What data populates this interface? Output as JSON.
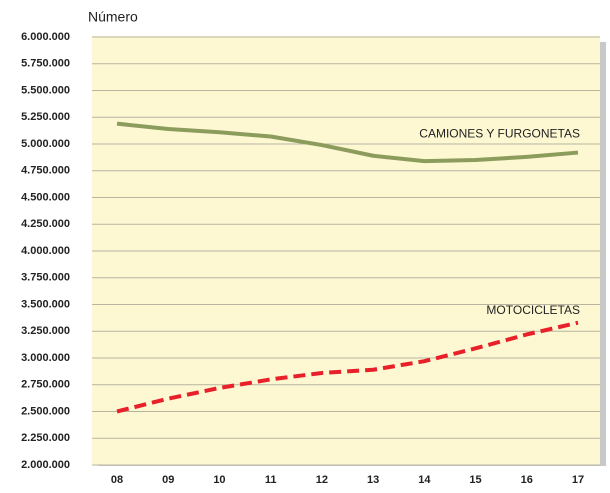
{
  "chart_data": {
    "type": "line",
    "y_label": "Número",
    "categories": [
      "08",
      "09",
      "10",
      "11",
      "12",
      "13",
      "14",
      "15",
      "16",
      "17"
    ],
    "series": [
      {
        "name": "CAMIONES Y FURGONETAS",
        "color": "#8c9c5c",
        "dashed": false,
        "values": [
          5190000,
          5140000,
          5110000,
          5070000,
          4990000,
          4890000,
          4840000,
          4850000,
          4880000,
          4920000
        ]
      },
      {
        "name": "MOTOCICLETAS",
        "color": "#e8202a",
        "dashed": true,
        "values": [
          2500000,
          2620000,
          2720000,
          2800000,
          2860000,
          2890000,
          2970000,
          3090000,
          3220000,
          3330000
        ]
      }
    ],
    "ylim": [
      2000000,
      6000000
    ],
    "yticks": [
      {
        "value": 2000000,
        "label": "2.000.000"
      },
      {
        "value": 2250000,
        "label": "2.250.000"
      },
      {
        "value": 2500000,
        "label": "2.500.000"
      },
      {
        "value": 2750000,
        "label": "2.750.000"
      },
      {
        "value": 3000000,
        "label": "3.000.000"
      },
      {
        "value": 3250000,
        "label": "3.250.000"
      },
      {
        "value": 3500000,
        "label": "3.500.000"
      },
      {
        "value": 3750000,
        "label": "3.750.000"
      },
      {
        "value": 4000000,
        "label": "4.000.000"
      },
      {
        "value": 4250000,
        "label": "4.250.000"
      },
      {
        "value": 4500000,
        "label": "4.500.000"
      },
      {
        "value": 4750000,
        "label": "4.750.000"
      },
      {
        "value": 5000000,
        "label": "5.000.000"
      },
      {
        "value": 5250000,
        "label": "5.250.000"
      },
      {
        "value": 5500000,
        "label": "5.500.000"
      },
      {
        "value": 5750000,
        "label": "5.750.000"
      },
      {
        "value": 6000000,
        "label": "6.000.000"
      }
    ],
    "grid": true
  }
}
